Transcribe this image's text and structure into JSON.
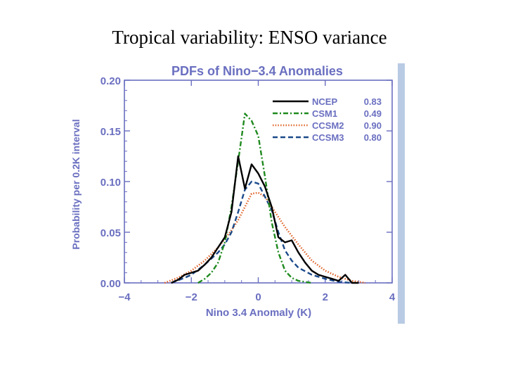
{
  "slide": {
    "title": "Tropical variability: ENSO variance"
  },
  "colors": {
    "accent": "#6a6fc0",
    "ncep": "#000000",
    "csm1": "#1f8a1f",
    "ccsm2": "#e0652a",
    "ccsm3": "#1b4a8a"
  },
  "chart_data": {
    "type": "line",
    "title": "PDFs of Nino−3.4 Anomalies",
    "xlabel": "Nino 3.4 Anomaly (K)",
    "ylabel": "Probability per 0.2K interval",
    "xlim": [
      -4,
      4
    ],
    "ylim": [
      0,
      0.2
    ],
    "x_ticks": [
      "−4",
      "−2",
      "0",
      "2",
      "4"
    ],
    "y_ticks": [
      "0.00",
      "0.05",
      "0.10",
      "0.15",
      "0.20"
    ],
    "legend_position": "top-right",
    "series": [
      {
        "name": "NCEP",
        "value_label": "0.83",
        "color": "#000000",
        "dash": "solid",
        "x": [
          -2.6,
          -2.4,
          -2.2,
          -2.0,
          -1.8,
          -1.6,
          -1.4,
          -1.2,
          -1.0,
          -0.8,
          -0.6,
          -0.4,
          -0.2,
          0.0,
          0.2,
          0.4,
          0.6,
          0.8,
          1.0,
          1.2,
          1.4,
          1.6,
          1.8,
          2.0,
          2.2,
          2.4,
          2.6,
          2.8,
          3.0
        ],
        "y": [
          0.0,
          0.003,
          0.008,
          0.01,
          0.012,
          0.018,
          0.025,
          0.035,
          0.045,
          0.07,
          0.125,
          0.093,
          0.117,
          0.108,
          0.095,
          0.075,
          0.045,
          0.04,
          0.042,
          0.03,
          0.02,
          0.012,
          0.008,
          0.006,
          0.004,
          0.002,
          0.008,
          0.0,
          0.0
        ]
      },
      {
        "name": "CSM1",
        "value_label": "0.49",
        "color": "#1f8a1f",
        "dash": "dashdot",
        "x": [
          -1.8,
          -1.6,
          -1.4,
          -1.2,
          -1.0,
          -0.8,
          -0.6,
          -0.4,
          -0.2,
          0.0,
          0.2,
          0.4,
          0.6,
          0.8,
          1.0,
          1.2,
          1.4,
          1.6
        ],
        "y": [
          0.0,
          0.004,
          0.01,
          0.02,
          0.04,
          0.075,
          0.12,
          0.167,
          0.16,
          0.145,
          0.105,
          0.06,
          0.03,
          0.012,
          0.005,
          0.002,
          0.001,
          0.0
        ]
      },
      {
        "name": "CCSM2",
        "value_label": "0.90",
        "color": "#e0652a",
        "dash": "dotted",
        "x": [
          -2.8,
          -2.4,
          -2.0,
          -1.6,
          -1.2,
          -0.8,
          -0.6,
          -0.4,
          -0.2,
          0.0,
          0.2,
          0.4,
          0.8,
          1.2,
          1.6,
          2.0,
          2.4,
          2.8,
          3.2
        ],
        "y": [
          0.0,
          0.005,
          0.012,
          0.022,
          0.035,
          0.052,
          0.062,
          0.075,
          0.088,
          0.089,
          0.085,
          0.075,
          0.055,
          0.038,
          0.022,
          0.012,
          0.006,
          0.002,
          0.0
        ]
      },
      {
        "name": "CCSM3",
        "value_label": "0.80",
        "color": "#1b4a8a",
        "dash": "dashed",
        "x": [
          -2.6,
          -2.2,
          -2.0,
          -1.6,
          -1.2,
          -1.0,
          -0.8,
          -0.6,
          -0.4,
          -0.2,
          0.0,
          0.2,
          0.4,
          0.6,
          0.8,
          1.0,
          1.2,
          1.6,
          2.0,
          2.4,
          2.8
        ],
        "y": [
          0.0,
          0.005,
          0.008,
          0.018,
          0.03,
          0.038,
          0.05,
          0.07,
          0.092,
          0.1,
          0.098,
          0.085,
          0.072,
          0.05,
          0.032,
          0.022,
          0.015,
          0.008,
          0.004,
          0.001,
          0.0
        ]
      }
    ]
  }
}
